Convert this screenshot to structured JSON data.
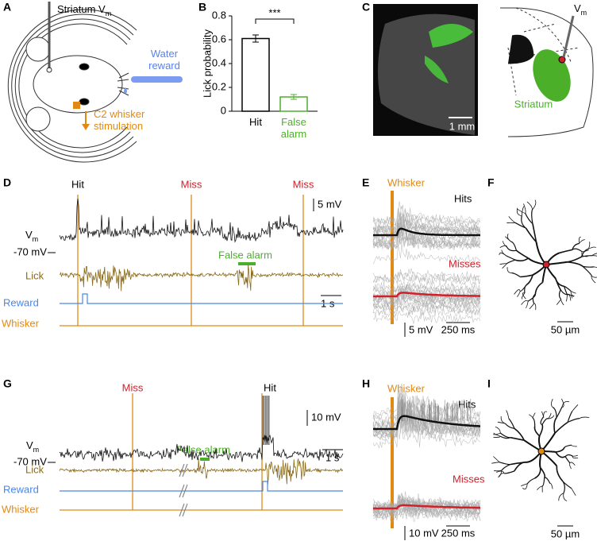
{
  "panel_letters": [
    "A",
    "B",
    "C",
    "D",
    "E",
    "F",
    "G",
    "H",
    "I"
  ],
  "panel_a": {
    "electrode_label": {
      "text": "Striatum V",
      "subscript": "m"
    },
    "reward_label": "Water reward",
    "whisker_label": "C2 whisker stimulation"
  },
  "chart_data": {
    "type": "bar",
    "ylabel": "Lick probability",
    "categories": [
      "Hit",
      "False alarm"
    ],
    "values": [
      0.61,
      0.12
    ],
    "errors": [
      0.03,
      0.02
    ],
    "colors": [
      "#000000",
      "#4caf2a"
    ],
    "ylim": [
      0,
      0.8
    ],
    "yticks": [
      0,
      0.2,
      0.4,
      0.6,
      0.8
    ],
    "significance": "***"
  },
  "panel_c": {
    "scale_label": "1 mm",
    "region_label": "Striatum",
    "electrode_label": {
      "text": "V",
      "subscript": "m"
    }
  },
  "panel_d": {
    "events": [
      "Hit",
      "Miss",
      "Miss"
    ],
    "voltage_scale": "5 mV",
    "vm_label": {
      "text": "V",
      "subscript": "m"
    },
    "baseline_label": "-70 mV",
    "false_alarm_label": "False alarm",
    "lick_label": "Lick",
    "time_scale": "1 s",
    "reward_label": "Reward",
    "whisker_label": "Whisker"
  },
  "panel_e": {
    "whisker_label": "Whisker",
    "hits_label": "Hits",
    "misses_label": "Misses",
    "voltage_scale": "5 mV",
    "time_scale": "250 ms"
  },
  "panel_f": {
    "scale_label": "50 µm"
  },
  "panel_g": {
    "events": [
      "Miss",
      "Hit"
    ],
    "voltage_scale": "10 mV",
    "vm_label": {
      "text": "V",
      "subscript": "m"
    },
    "baseline_label": "-70 mV",
    "false_alarm_label": "False alarm",
    "lick_label": "Lick",
    "time_scale": "1 s",
    "reward_label": "Reward",
    "whisker_label": "Whisker"
  },
  "panel_h": {
    "whisker_label": "Whisker",
    "hits_label": "Hits",
    "misses_label": "Misses",
    "voltage_scale": "10 mV",
    "time_scale": "250 ms"
  },
  "panel_i": {
    "scale_label": "50 µm"
  }
}
